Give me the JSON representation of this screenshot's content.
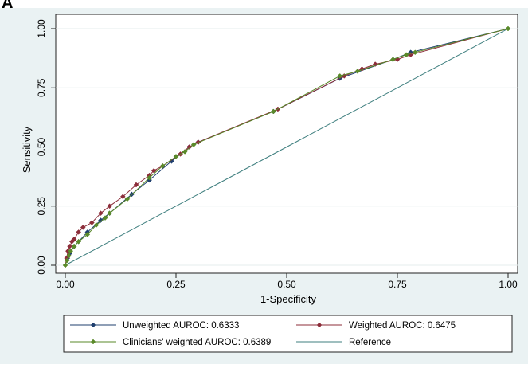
{
  "panel_label": "A",
  "chart_data": {
    "type": "line",
    "xlabel": "1-Specificity",
    "ylabel": "Sensitivity",
    "xlim": [
      0,
      1
    ],
    "ylim": [
      0,
      1
    ],
    "x_ticks": [
      "0.00",
      "0.25",
      "0.50",
      "0.75",
      "1.00"
    ],
    "y_ticks": [
      "0.00",
      "0.25",
      "0.50",
      "0.75",
      "1.00"
    ],
    "grid": "horizontal",
    "legend_position": "bottom",
    "series": [
      {
        "name": "Unweighted AUROC: 0.6333",
        "color": "#1f3f6e",
        "marker": "diamond",
        "points": [
          [
            0,
            0
          ],
          [
            0.005,
            0.03
          ],
          [
            0.01,
            0.05
          ],
          [
            0.02,
            0.08
          ],
          [
            0.03,
            0.1
          ],
          [
            0.05,
            0.14
          ],
          [
            0.08,
            0.19
          ],
          [
            0.1,
            0.22
          ],
          [
            0.15,
            0.3
          ],
          [
            0.19,
            0.36
          ],
          [
            0.24,
            0.44
          ],
          [
            0.28,
            0.5
          ],
          [
            0.3,
            0.52
          ],
          [
            0.47,
            0.65
          ],
          [
            0.62,
            0.79
          ],
          [
            0.74,
            0.87
          ],
          [
            0.78,
            0.9
          ],
          [
            1,
            1
          ]
        ]
      },
      {
        "name": "Weighted AUROC: 0.6475",
        "color": "#8c2d3a",
        "marker": "diamond",
        "points": [
          [
            0,
            0
          ],
          [
            0.003,
            0.03
          ],
          [
            0.006,
            0.06
          ],
          [
            0.01,
            0.08
          ],
          [
            0.015,
            0.1
          ],
          [
            0.02,
            0.11
          ],
          [
            0.03,
            0.14
          ],
          [
            0.04,
            0.16
          ],
          [
            0.06,
            0.18
          ],
          [
            0.08,
            0.22
          ],
          [
            0.1,
            0.25
          ],
          [
            0.13,
            0.29
          ],
          [
            0.16,
            0.34
          ],
          [
            0.19,
            0.38
          ],
          [
            0.2,
            0.4
          ],
          [
            0.22,
            0.42
          ],
          [
            0.26,
            0.47
          ],
          [
            0.28,
            0.5
          ],
          [
            0.3,
            0.52
          ],
          [
            0.48,
            0.66
          ],
          [
            0.63,
            0.8
          ],
          [
            0.67,
            0.83
          ],
          [
            0.7,
            0.85
          ],
          [
            0.75,
            0.87
          ],
          [
            0.78,
            0.89
          ],
          [
            1,
            1
          ]
        ]
      },
      {
        "name": "Clinicians' weighted AUROC: 0.6389",
        "color": "#5a8a2a",
        "marker": "diamond",
        "points": [
          [
            0,
            0
          ],
          [
            0.004,
            0.02
          ],
          [
            0.008,
            0.04
          ],
          [
            0.012,
            0.06
          ],
          [
            0.02,
            0.08
          ],
          [
            0.03,
            0.1
          ],
          [
            0.05,
            0.13
          ],
          [
            0.07,
            0.17
          ],
          [
            0.09,
            0.2
          ],
          [
            0.1,
            0.22
          ],
          [
            0.14,
            0.28
          ],
          [
            0.19,
            0.37
          ],
          [
            0.22,
            0.42
          ],
          [
            0.25,
            0.46
          ],
          [
            0.27,
            0.48
          ],
          [
            0.29,
            0.51
          ],
          [
            0.47,
            0.65
          ],
          [
            0.62,
            0.8
          ],
          [
            0.66,
            0.82
          ],
          [
            0.74,
            0.87
          ],
          [
            0.77,
            0.89
          ],
          [
            0.79,
            0.9
          ],
          [
            1,
            1
          ]
        ]
      },
      {
        "name": "Reference",
        "color": "#3f7f7f",
        "marker": "none",
        "points": [
          [
            0,
            0
          ],
          [
            1,
            1
          ]
        ]
      }
    ]
  }
}
